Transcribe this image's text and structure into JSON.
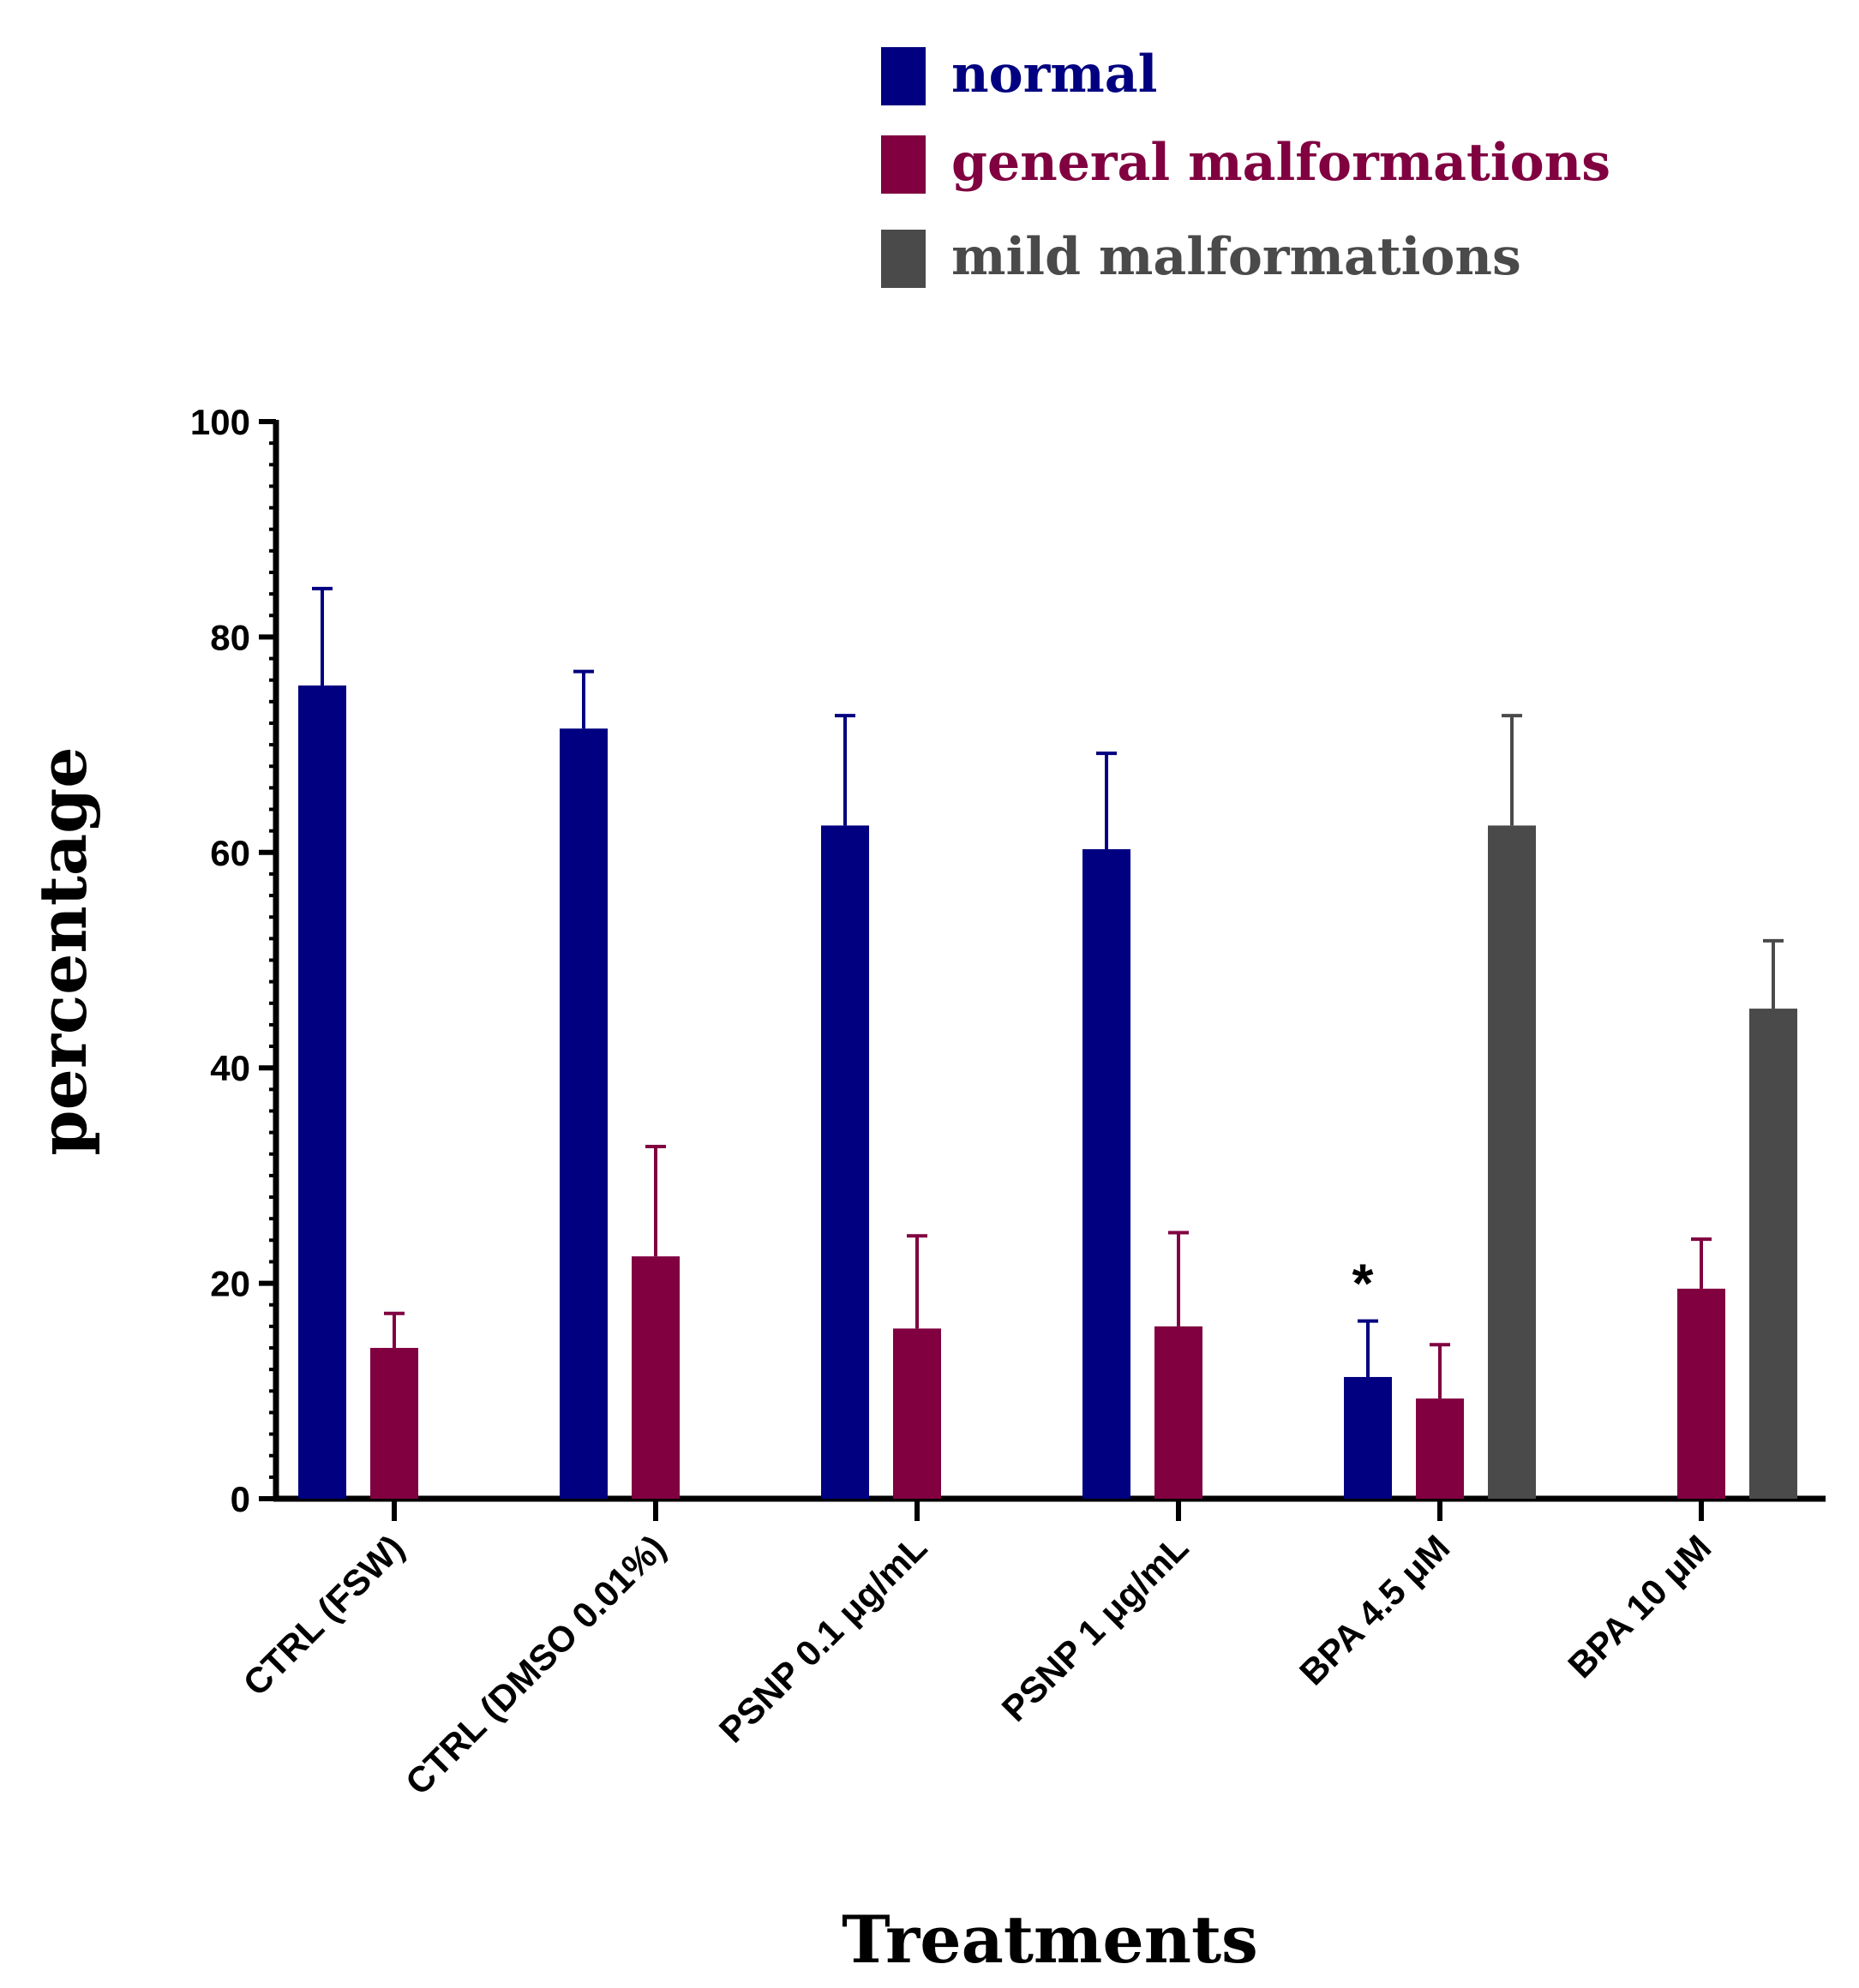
{
  "chart_data": {
    "type": "bar",
    "title": "",
    "xlabel": "Treatments",
    "ylabel": "percentage",
    "ylim": [
      0,
      100
    ],
    "yticks": [
      0,
      20,
      40,
      60,
      80,
      100
    ],
    "ytick_labels": [
      "0",
      "20",
      "40",
      "60",
      "80",
      "100"
    ],
    "legend_position": "top-right",
    "categories": [
      "CTRL (FSW)",
      "CTRL (DMSO 0.01%)",
      "PSNP 0.1 μg/mL",
      "PSNP 1 μg/mL",
      "BPA 4.5 μM",
      "BPA 10 μM"
    ],
    "series": [
      {
        "name": "normal",
        "color": "#000080",
        "values": [
          75.5,
          71.5,
          62.5,
          60.3,
          11.3,
          null
        ],
        "errors": [
          9.0,
          5.3,
          10.2,
          8.9,
          5.2,
          null
        ]
      },
      {
        "name": "general malformations",
        "color": "#800040",
        "values": [
          14.0,
          22.5,
          15.8,
          16.0,
          9.3,
          19.5
        ],
        "errors": [
          3.2,
          10.2,
          8.6,
          8.7,
          5.0,
          4.6
        ]
      },
      {
        "name": "mild malformations",
        "color": "#4a4a4a",
        "values": [
          null,
          null,
          null,
          null,
          62.5,
          45.5
        ],
        "errors": [
          null,
          null,
          null,
          null,
          10.2,
          6.3
        ]
      }
    ],
    "annotations": [
      {
        "text": "*",
        "category": "BPA 4.5 μM",
        "series": "normal"
      }
    ]
  }
}
